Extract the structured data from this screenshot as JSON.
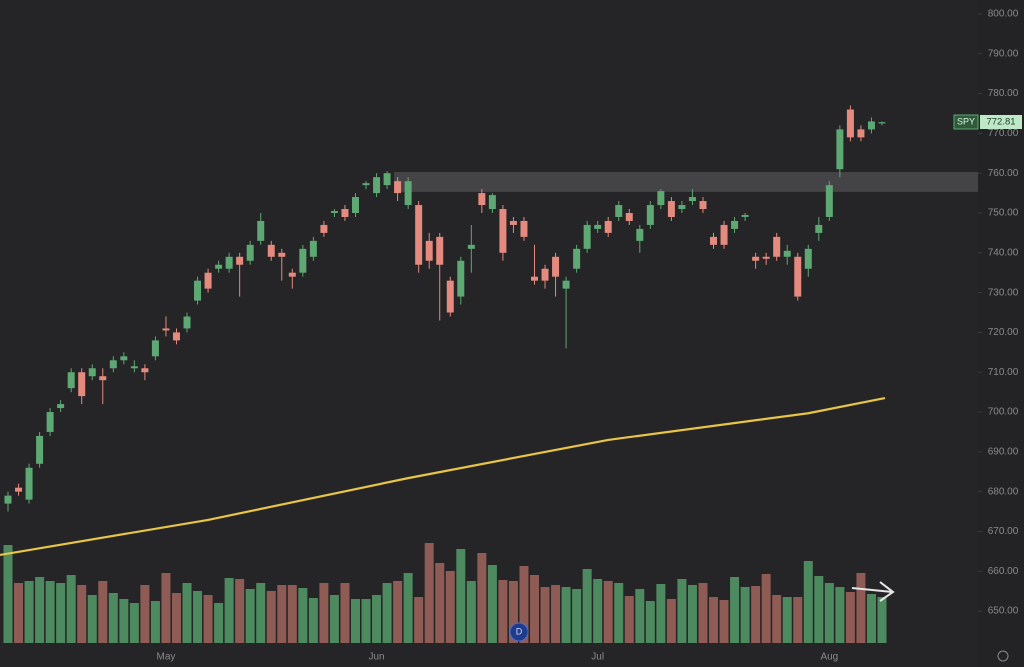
{
  "chart_data": {
    "type": "candlestick",
    "ticker": "SPY",
    "last_price_label": "772.81",
    "categories": [
      null,
      null,
      null,
      null,
      null,
      null,
      null,
      null,
      null,
      null,
      null,
      null,
      null,
      null,
      null,
      "May",
      null,
      null,
      null,
      null,
      null,
      null,
      null,
      null,
      null,
      null,
      null,
      null,
      null,
      null,
      null,
      null,
      null,
      null,
      null,
      "Jun",
      null,
      null,
      null,
      null,
      null,
      null,
      null,
      null,
      null,
      null,
      null,
      null,
      null,
      null,
      null,
      null,
      null,
      null,
      null,
      null,
      "Jul",
      null,
      null,
      null,
      null,
      null,
      null,
      null,
      null,
      null,
      null,
      null,
      null,
      null,
      null,
      null,
      null,
      null,
      null,
      null,
      null,
      null,
      "Aug",
      null,
      null,
      null,
      null,
      null
    ],
    "open": [
      677,
      681,
      678,
      687,
      695,
      701,
      706,
      710,
      709,
      709,
      711,
      713,
      711,
      711,
      714,
      721,
      720,
      721,
      728,
      735,
      736,
      736,
      739,
      738,
      743,
      742,
      740,
      735,
      735,
      739,
      747,
      750,
      751,
      750,
      757,
      755,
      757,
      758,
      752,
      752,
      743,
      744,
      733,
      729,
      741,
      755,
      751,
      751,
      748,
      748,
      734,
      736,
      739,
      731,
      736,
      741,
      746,
      748,
      749,
      750,
      743,
      747,
      752,
      753,
      751,
      753,
      753,
      744,
      747,
      746,
      749,
      739,
      739,
      744,
      739,
      739,
      736,
      745,
      749,
      761,
      776,
      771,
      771,
      772.5
    ],
    "high": [
      680,
      682,
      687,
      695,
      701,
      703,
      711,
      711,
      712,
      711,
      714,
      715,
      713,
      712,
      719,
      724,
      721,
      725,
      734,
      736,
      738,
      740,
      740,
      743,
      750,
      743,
      741,
      736,
      742,
      744,
      748,
      751,
      752,
      755,
      758,
      760,
      760.5,
      759,
      759,
      753,
      745,
      745,
      734,
      739,
      747,
      756,
      755,
      752,
      749,
      749,
      742,
      737,
      740,
      734,
      742,
      748,
      748,
      749,
      753,
      751,
      747,
      753,
      756,
      754,
      753,
      756,
      754,
      745,
      748,
      749,
      750,
      740,
      740,
      745,
      742,
      740,
      742,
      749,
      758,
      772,
      777,
      772,
      774,
      773
    ],
    "low": [
      675,
      679,
      677,
      686,
      694,
      700,
      705,
      702,
      708,
      702,
      710,
      712,
      710,
      708,
      713,
      719,
      717,
      720,
      727,
      730,
      735,
      735,
      729,
      737,
      742,
      738,
      733,
      731,
      734,
      738,
      744,
      749,
      748,
      749,
      756,
      754,
      756,
      753,
      751,
      735,
      736,
      723,
      724,
      727,
      735,
      750,
      750,
      738,
      745,
      743,
      732,
      731,
      729,
      716,
      735,
      740,
      745,
      744,
      748,
      747,
      740,
      746,
      751,
      748,
      750,
      752,
      750,
      741,
      741,
      745,
      748,
      736,
      737,
      738,
      737,
      728,
      734,
      743,
      748,
      759,
      768,
      768,
      770,
      772
    ],
    "close": [
      679,
      680,
      686,
      694,
      700,
      702,
      710,
      704,
      711,
      708,
      713,
      714,
      711.5,
      710,
      718,
      720.5,
      718,
      724,
      733,
      731,
      737,
      739,
      737,
      742,
      748,
      739,
      739,
      734,
      741,
      743,
      745,
      750.5,
      749,
      754,
      757.5,
      759,
      760,
      755,
      758,
      737,
      738,
      737,
      725,
      738,
      742,
      752,
      754.5,
      740,
      747,
      744,
      733,
      733,
      734,
      733,
      741,
      747,
      747,
      745,
      752,
      748,
      746,
      752,
      755.5,
      749,
      752,
      754,
      751,
      742,
      742,
      748,
      749.5,
      738,
      738.5,
      739,
      740.5,
      729,
      741,
      747,
      757,
      771,
      769,
      769,
      773,
      772.81
    ],
    "volume": [
      98,
      60,
      62,
      66,
      62,
      60,
      68,
      58,
      48,
      62,
      50,
      44,
      40,
      58,
      42,
      70,
      50,
      60,
      52,
      48,
      40,
      65,
      64,
      54,
      60,
      52,
      58,
      58,
      55,
      45,
      60,
      48,
      60,
      44,
      44,
      48,
      60,
      62,
      70,
      46,
      100,
      80,
      72,
      94,
      62,
      90,
      78,
      63,
      62,
      77,
      68,
      56,
      58,
      56,
      54,
      74,
      64,
      62,
      60,
      47,
      54,
      42,
      59,
      44,
      64,
      58,
      60,
      46,
      43,
      66,
      56,
      57,
      69,
      48,
      46,
      46,
      82,
      67,
      60,
      56,
      51,
      70,
      49,
      46
    ],
    "color_up": "#5ea873",
    "color_down": "#e48a7e",
    "volume_color_up": "#4e8a5f",
    "volume_color_down": "#8f5b55",
    "vlim": [
      0,
      100
    ],
    "moving_average": {
      "color": "#e8c547",
      "x": [
        0,
        19,
        38,
        57,
        76,
        83
      ],
      "values": [
        664.1,
        672.9,
        683.4,
        693,
        699.7,
        703.5
      ]
    },
    "resistance_band": [
      755.3,
      760.3
    ],
    "ylim": [
      646,
      802
    ],
    "yticks": [
      {
        "value": 650,
        "label": "650.00"
      },
      {
        "value": 660,
        "label": "660.00"
      },
      {
        "value": 670,
        "label": "670.00"
      },
      {
        "value": 680,
        "label": "680.00"
      },
      {
        "value": 690,
        "label": "690.00"
      },
      {
        "value": 700,
        "label": "700.00"
      },
      {
        "value": 710,
        "label": "710.00"
      },
      {
        "value": 720,
        "label": "720.00"
      },
      {
        "value": 730,
        "label": "730.00"
      },
      {
        "value": 740,
        "label": "740.00"
      },
      {
        "value": 750,
        "label": "750.00"
      },
      {
        "value": 760,
        "label": "760.00"
      },
      {
        "value": 770,
        "label": "770.00"
      },
      {
        "value": 780,
        "label": "780.00"
      },
      {
        "value": 790,
        "label": "790.00"
      },
      {
        "value": 800,
        "label": "800.00"
      }
    ]
  }
}
